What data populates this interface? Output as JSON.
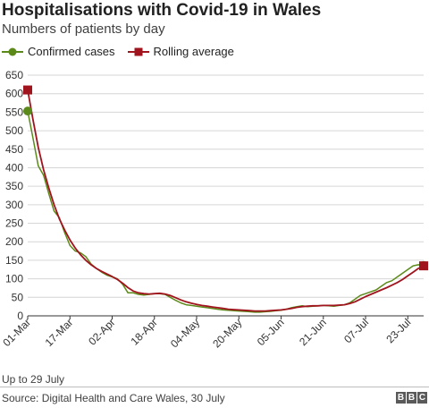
{
  "chart_data": {
    "type": "line",
    "title": "Hospitalisations with Covid-19 in Wales",
    "subtitle": "Numbers of patients by day",
    "xlabel": "",
    "ylabel": "",
    "ylim": [
      0,
      650
    ],
    "yticks": [
      0,
      50,
      100,
      150,
      200,
      250,
      300,
      350,
      400,
      450,
      500,
      550,
      600,
      650
    ],
    "xtick_labels": [
      "01-Mar",
      "17-Mar",
      "02-Apr",
      "18-Apr",
      "04-May",
      "20-May",
      "05-Jun",
      "21-Jun",
      "07-Jul",
      "23-Jul"
    ],
    "grid": "horizontal",
    "legend_position": "top-left",
    "colors": {
      "confirmed": "#5c8a1a",
      "rolling": "#a0141e",
      "grid": "#d6d6d6",
      "axis": "#333333"
    },
    "x_dates": [
      "01-Mar",
      "03-Mar",
      "05-Mar",
      "07-Mar",
      "09-Mar",
      "11-Mar",
      "13-Mar",
      "15-Mar",
      "17-Mar",
      "19-Mar",
      "21-Mar",
      "23-Mar",
      "25-Mar",
      "27-Mar",
      "29-Mar",
      "31-Mar",
      "02-Apr",
      "04-Apr",
      "06-Apr",
      "08-Apr",
      "10-Apr",
      "12-Apr",
      "14-Apr",
      "16-Apr",
      "18-Apr",
      "20-Apr",
      "22-Apr",
      "24-Apr",
      "26-Apr",
      "28-Apr",
      "30-Apr",
      "02-May",
      "04-May",
      "06-May",
      "08-May",
      "10-May",
      "12-May",
      "14-May",
      "16-May",
      "18-May",
      "20-May",
      "22-May",
      "24-May",
      "26-May",
      "28-May",
      "30-May",
      "01-Jun",
      "03-Jun",
      "05-Jun",
      "07-Jun",
      "09-Jun",
      "11-Jun",
      "13-Jun",
      "15-Jun",
      "17-Jun",
      "19-Jun",
      "21-Jun",
      "23-Jun",
      "25-Jun",
      "27-Jun",
      "29-Jun",
      "01-Jul",
      "03-Jul",
      "05-Jul",
      "07-Jul",
      "09-Jul",
      "11-Jul",
      "13-Jul",
      "15-Jul",
      "17-Jul",
      "19-Jul",
      "21-Jul",
      "23-Jul",
      "25-Jul",
      "27-Jul",
      "29-Jul"
    ],
    "series": [
      {
        "name": "Confirmed cases",
        "marker": "circle",
        "values": [
          553,
          480,
          405,
          380,
          330,
          283,
          265,
          225,
          190,
          175,
          170,
          160,
          140,
          128,
          118,
          110,
          105,
          100,
          85,
          62,
          62,
          58,
          56,
          58,
          60,
          60,
          58,
          50,
          42,
          35,
          30,
          28,
          26,
          24,
          22,
          20,
          18,
          16,
          15,
          14,
          13,
          12,
          11,
          10,
          10,
          11,
          12,
          14,
          15,
          18,
          22,
          25,
          27,
          25,
          26,
          27,
          28,
          27,
          26,
          28,
          30,
          35,
          45,
          55,
          60,
          65,
          70,
          80,
          90,
          95,
          105,
          115,
          125,
          135,
          138,
          136
        ]
      },
      {
        "name": "Rolling average",
        "marker": "square",
        "values": [
          610,
          530,
          455,
          395,
          345,
          300,
          262,
          232,
          205,
          183,
          165,
          150,
          138,
          128,
          120,
          113,
          106,
          98,
          88,
          76,
          67,
          62,
          60,
          59,
          60,
          61,
          59,
          55,
          49,
          43,
          38,
          34,
          31,
          28,
          26,
          24,
          22,
          20,
          18,
          17,
          16,
          15,
          14,
          13,
          13,
          13,
          14,
          15,
          16,
          18,
          20,
          23,
          25,
          26,
          27,
          27,
          28,
          28,
          28,
          29,
          30,
          33,
          38,
          45,
          52,
          58,
          64,
          70,
          76,
          83,
          90,
          98,
          108,
          118,
          128,
          135
        ]
      }
    ]
  },
  "legend": {
    "confirmed_label": "Confirmed cases",
    "rolling_label": "Rolling average"
  },
  "footer": {
    "note": "Up to 29 July",
    "source": "Source: Digital Health and Care Wales, 30 July",
    "logo_letters": [
      "B",
      "B",
      "C"
    ]
  }
}
